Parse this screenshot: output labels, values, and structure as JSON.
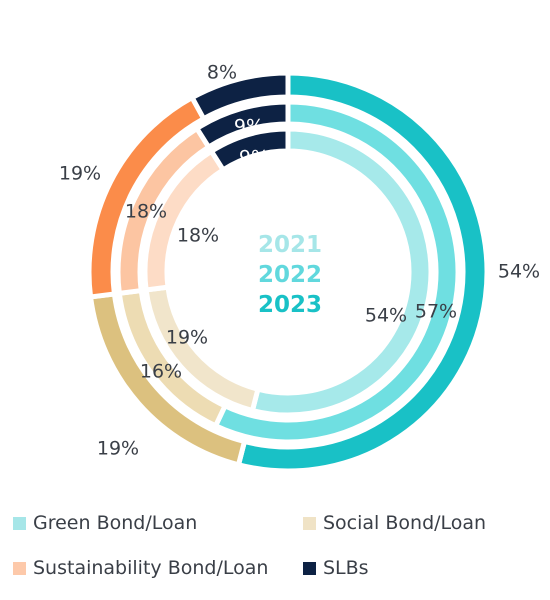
{
  "chart_data": {
    "type": "pie",
    "variant": "nested-donut",
    "years": [
      "2021",
      "2022",
      "2023"
    ],
    "year_colors": [
      "#a6e6e8",
      "#61d8dd",
      "#19c1c6"
    ],
    "categories": [
      "Green Bond/Loan",
      "Social Bond/Loan",
      "Sustainability Bond/Loan",
      "SLBs"
    ],
    "series": [
      {
        "name": "2021",
        "values": [
          54,
          19,
          18,
          9
        ],
        "labels": [
          "54%",
          "19%",
          "18%",
          "9%"
        ],
        "colors": [
          "#a6e9ea",
          "#f1e5cb",
          "#fddcc6",
          "#0d2244"
        ]
      },
      {
        "name": "2022",
        "values": [
          57,
          16,
          18,
          9
        ],
        "labels": [
          "57%",
          "16%",
          "18%",
          "9%"
        ],
        "colors": [
          "#6fdfe1",
          "#eddcb3",
          "#fcc5a2",
          "#0d2244"
        ]
      },
      {
        "name": "2023",
        "values": [
          54,
          19,
          19,
          8
        ],
        "labels": [
          "54%",
          "19%",
          "19%",
          "8%"
        ],
        "colors": [
          "#19c1c6",
          "#dcc17f",
          "#fb8c4a",
          "#0d2244"
        ]
      }
    ],
    "legend": {
      "position": "bottom",
      "items": [
        {
          "label": "Green Bond/Loan",
          "color": "#a6e6e8"
        },
        {
          "label": "Social Bond/Loan",
          "color": "#f0e3c6"
        },
        {
          "label": "Sustainability Bond/Loan",
          "color": "#fdc9aa"
        },
        {
          "label": "SLBs",
          "color": "#0d2244"
        }
      ]
    }
  }
}
